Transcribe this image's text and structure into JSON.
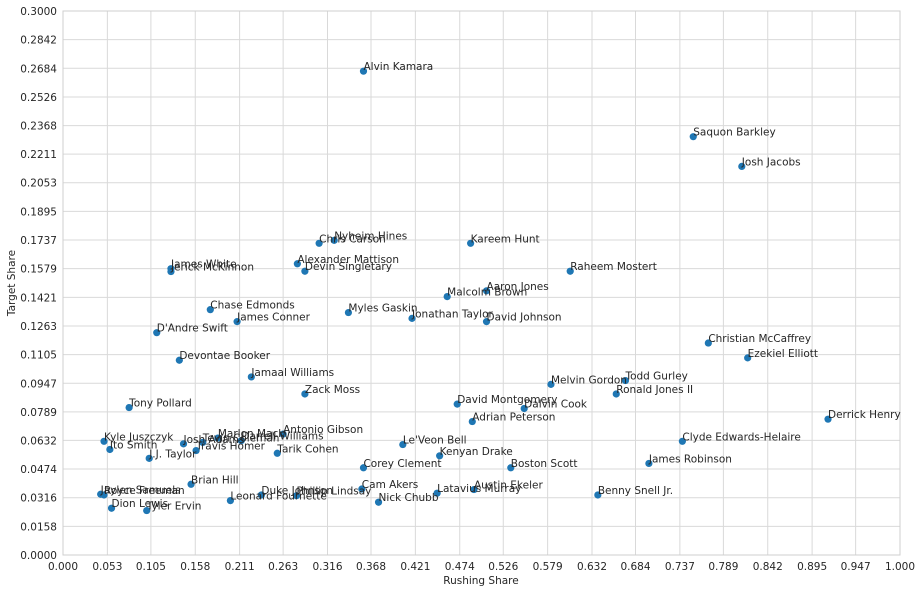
{
  "chart_data": {
    "type": "scatter",
    "title": "",
    "xlabel": "Rushing Share",
    "ylabel": "Target Share",
    "xlim": [
      0,
      1
    ],
    "ylim": [
      0,
      0.3
    ],
    "grid": true,
    "marker_color": "#1f77b4",
    "x_ticks": [
      "0.000",
      "0.053",
      "0.105",
      "0.158",
      "0.211",
      "0.263",
      "0.316",
      "0.368",
      "0.421",
      "0.474",
      "0.526",
      "0.579",
      "0.632",
      "0.684",
      "0.737",
      "0.789",
      "0.842",
      "0.895",
      "0.947",
      "1.000"
    ],
    "y_ticks": [
      "0.0000",
      "0.0158",
      "0.0316",
      "0.0474",
      "0.0632",
      "0.0789",
      "0.0947",
      "0.1105",
      "0.1263",
      "0.1421",
      "0.1579",
      "0.1737",
      "0.1895",
      "0.2053",
      "0.2211",
      "0.2368",
      "0.2526",
      "0.2684",
      "0.2842",
      "0.3000"
    ],
    "points": [
      {
        "label": "Alvin Kamara",
        "x": 0.359,
        "y": 0.2668
      },
      {
        "label": "Saquon Barkley",
        "x": 0.753,
        "y": 0.2307
      },
      {
        "label": "Josh Jacobs",
        "x": 0.811,
        "y": 0.2143
      },
      {
        "label": "Nyheim Hines",
        "x": 0.324,
        "y": 0.1735
      },
      {
        "label": "Chris Carson",
        "x": 0.306,
        "y": 0.1719
      },
      {
        "label": "Kareem Hunt",
        "x": 0.487,
        "y": 0.1719
      },
      {
        "label": "Alexander Mattison",
        "x": 0.28,
        "y": 0.1606
      },
      {
        "label": "Devin Singletary",
        "x": 0.289,
        "y": 0.1565
      },
      {
        "label": "James White",
        "x": 0.129,
        "y": 0.1579
      },
      {
        "label": "Jerick McKinnon",
        "x": 0.129,
        "y": 0.1563
      },
      {
        "label": "Raheem Mostert",
        "x": 0.606,
        "y": 0.1565
      },
      {
        "label": "Aaron Jones",
        "x": 0.506,
        "y": 0.1457
      },
      {
        "label": "Malcolm Brown",
        "x": 0.459,
        "y": 0.1425
      },
      {
        "label": "Chase Edmonds",
        "x": 0.176,
        "y": 0.1353
      },
      {
        "label": "Myles Gaskin",
        "x": 0.341,
        "y": 0.1337
      },
      {
        "label": "James Conner",
        "x": 0.208,
        "y": 0.1287
      },
      {
        "label": "Jonathan Taylor",
        "x": 0.417,
        "y": 0.1305
      },
      {
        "label": "David Johnson",
        "x": 0.506,
        "y": 0.1287
      },
      {
        "label": "D'Andre Swift",
        "x": 0.112,
        "y": 0.1226
      },
      {
        "label": "Christian McCaffrey",
        "x": 0.771,
        "y": 0.1169
      },
      {
        "label": "Ezekiel Elliott",
        "x": 0.818,
        "y": 0.1087
      },
      {
        "label": "Devontae Booker",
        "x": 0.139,
        "y": 0.1074
      },
      {
        "label": "Jamaal Williams",
        "x": 0.225,
        "y": 0.0982
      },
      {
        "label": "Todd Gurley",
        "x": 0.672,
        "y": 0.0962
      },
      {
        "label": "Melvin Gordon",
        "x": 0.583,
        "y": 0.0941
      },
      {
        "label": "Zack Moss",
        "x": 0.289,
        "y": 0.0888
      },
      {
        "label": "Ronald Jones II",
        "x": 0.661,
        "y": 0.0888
      },
      {
        "label": "David Montgomery",
        "x": 0.471,
        "y": 0.0832
      },
      {
        "label": "Tony Pollard",
        "x": 0.079,
        "y": 0.0813
      },
      {
        "label": "Dalvin Cook",
        "x": 0.551,
        "y": 0.0808
      },
      {
        "label": "Derrick Henry",
        "x": 0.914,
        "y": 0.0749
      },
      {
        "label": "Adrian Peterson",
        "x": 0.489,
        "y": 0.0736
      },
      {
        "label": "Antonio Gibson",
        "x": 0.263,
        "y": 0.0667
      },
      {
        "label": "Marlon Mack",
        "x": 0.185,
        "y": 0.0645
      },
      {
        "label": "Darrell Williams",
        "x": 0.213,
        "y": 0.0631
      },
      {
        "label": "Tevin Coleman",
        "x": 0.167,
        "y": 0.0621
      },
      {
        "label": "Kyle Juszczyk",
        "x": 0.049,
        "y": 0.0627
      },
      {
        "label": "Josh Adams",
        "x": 0.144,
        "y": 0.0613
      },
      {
        "label": "Clyde Edwards-Helaire",
        "x": 0.74,
        "y": 0.0627
      },
      {
        "label": "Le'Veon Bell",
        "x": 0.406,
        "y": 0.0609
      },
      {
        "label": "Ito Smith",
        "x": 0.056,
        "y": 0.0582
      },
      {
        "label": "Travis Homer",
        "x": 0.159,
        "y": 0.0576
      },
      {
        "label": "Tarik Cohen",
        "x": 0.256,
        "y": 0.0561
      },
      {
        "label": "Kenyan Drake",
        "x": 0.45,
        "y": 0.0547
      },
      {
        "label": "J.J. Taylor",
        "x": 0.103,
        "y": 0.0533
      },
      {
        "label": "James Robinson",
        "x": 0.7,
        "y": 0.0505
      },
      {
        "label": "Corey Clement",
        "x": 0.359,
        "y": 0.0481
      },
      {
        "label": "Boston Scott",
        "x": 0.535,
        "y": 0.0481
      },
      {
        "label": "Brian Hill",
        "x": 0.153,
        "y": 0.039
      },
      {
        "label": "Cam Akers",
        "x": 0.357,
        "y": 0.0364
      },
      {
        "label": "Austin Ekeler",
        "x": 0.491,
        "y": 0.0361
      },
      {
        "label": "Latavius Murray",
        "x": 0.447,
        "y": 0.0341
      },
      {
        "label": "Jaylen Samuels",
        "x": 0.045,
        "y": 0.0335
      },
      {
        "label": "Royce Freeman",
        "x": 0.049,
        "y": 0.0331
      },
      {
        "label": "Duke Johnson",
        "x": 0.237,
        "y": 0.0331
      },
      {
        "label": "Phillip Lindsay",
        "x": 0.279,
        "y": 0.0327
      },
      {
        "label": "Benny Snell Jr.",
        "x": 0.639,
        "y": 0.0331
      },
      {
        "label": "Leonard Fournette",
        "x": 0.2,
        "y": 0.03
      },
      {
        "label": "Nick Chubb",
        "x": 0.377,
        "y": 0.0291
      },
      {
        "label": "Dion Lewis",
        "x": 0.058,
        "y": 0.0258
      },
      {
        "label": "Tyler Ervin",
        "x": 0.1,
        "y": 0.0245
      }
    ]
  }
}
